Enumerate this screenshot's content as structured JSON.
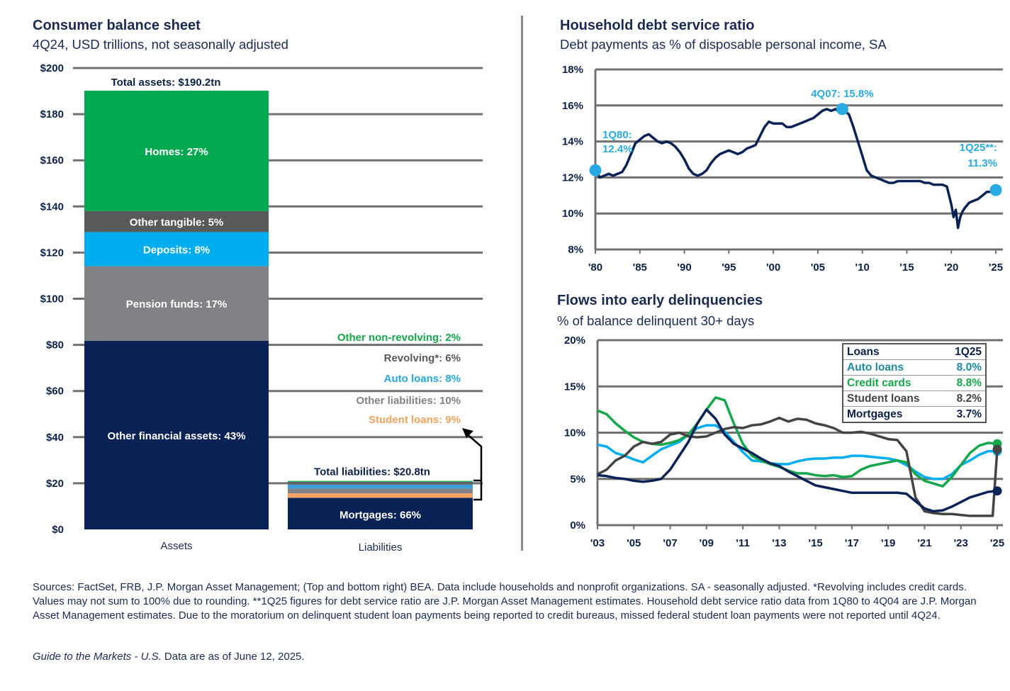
{
  "left_panel": {
    "title": "Consumer balance sheet",
    "subtitle": "4Q24, USD trillions, not seasonally adjusted"
  },
  "right_top": {
    "title": "Household debt service ratio",
    "subtitle": "Debt payments as % of disposable personal income, SA"
  },
  "right_bottom": {
    "title": "Flows into early delinquencies",
    "subtitle": "% of balance delinquent 30+ days",
    "table": {
      "header": [
        "Loans",
        "1Q25"
      ],
      "rows": [
        {
          "label": "Auto loans",
          "value": "8.0%",
          "color": "#1e8aa0"
        },
        {
          "label": "Credit cards",
          "value": "8.8%",
          "color": "#16a74a"
        },
        {
          "label": "Student loans",
          "value": "8.2%",
          "color": "#444444"
        },
        {
          "label": "Mortgages",
          "value": "3.7%",
          "color": "#0b2148"
        }
      ]
    }
  },
  "chart_data": [
    {
      "type": "bar",
      "stacked": true,
      "categories": [
        "Assets",
        "Liabilities"
      ],
      "ylim": [
        0,
        200
      ],
      "yticks": [
        "$0",
        "$20",
        "$40",
        "$60",
        "$80",
        "$100",
        "$120",
        "$140",
        "$160",
        "$180",
        "$200"
      ],
      "totals": [
        {
          "category": "Assets",
          "value": 190.2,
          "label": "Total assets:",
          "value_label": "$190.2tn"
        },
        {
          "category": "Liabilities",
          "value": 20.8,
          "label": "Total liabilities: $20.8tn"
        }
      ],
      "assets": [
        {
          "name": "Other financial assets",
          "label": "Other financial assets: 43%",
          "value": 81.8,
          "color": "#0b2256"
        },
        {
          "name": "Pension funds",
          "label": "Pension funds: 17%",
          "value": 32.3,
          "color": "#808285"
        },
        {
          "name": "Deposits",
          "label": "Deposits: 8%",
          "value": 14.8,
          "color": "#00aeef"
        },
        {
          "name": "Other tangible",
          "label": "Other tangible: 5%",
          "value": 9.1,
          "color": "#58595b"
        },
        {
          "name": "Homes",
          "label": "Homes: 27%",
          "value": 52.2,
          "color": "#00a84f"
        }
      ],
      "liabilities": [
        {
          "name": "Mortgages",
          "label": "Mortgages: 66%",
          "value": 13.7,
          "color": "#0b2256"
        },
        {
          "name": "Student loans",
          "label": "Student loans: 9%",
          "value": 1.9,
          "color": "#f4a361"
        },
        {
          "name": "Other liabilities",
          "label": "Other liabilities: 10%",
          "value": 2.1,
          "color": "#808285"
        },
        {
          "name": "Auto loans",
          "label": "Auto loans: 8%",
          "value": 1.7,
          "color": "#3ba0d8"
        },
        {
          "name": "Revolving",
          "label": "Revolving*: 6%",
          "value": 1.2,
          "color": "#626366"
        },
        {
          "name": "Other non-revolving",
          "label": "Other non-revolving: 2%",
          "value": 0.4,
          "color": "#1fa64a"
        }
      ]
    },
    {
      "type": "line",
      "ylim": [
        8,
        18
      ],
      "xlim": [
        1980,
        2025
      ],
      "yticks": [
        {
          "v": 8,
          "label": "8%"
        },
        {
          "v": 10,
          "label": "10%"
        },
        {
          "v": 12,
          "label": "12%"
        },
        {
          "v": 14,
          "label": "14%"
        },
        {
          "v": 16,
          "label": "16%"
        },
        {
          "v": 18,
          "label": "18%"
        }
      ],
      "xticks": [
        {
          "v": 1980,
          "label": "'80"
        },
        {
          "v": 1985,
          "label": "'85"
        },
        {
          "v": 1990,
          "label": "'90"
        },
        {
          "v": 1995,
          "label": "'95"
        },
        {
          "v": 2000,
          "label": "'00"
        },
        {
          "v": 2005,
          "label": "'05"
        },
        {
          "v": 2010,
          "label": "'10"
        },
        {
          "v": 2015,
          "label": "'15"
        },
        {
          "v": 2020,
          "label": "'20"
        },
        {
          "v": 2025,
          "label": "'25"
        }
      ],
      "series": [
        {
          "color": "#0b2256",
          "x": [
            1980.0,
            1980.5,
            1981.0,
            1981.5,
            1982.0,
            1982.5,
            1983.0,
            1983.5,
            1984.0,
            1984.5,
            1985.0,
            1985.5,
            1986.0,
            1986.5,
            1987.0,
            1987.5,
            1988.0,
            1988.5,
            1989.0,
            1989.5,
            1990.0,
            1990.5,
            1991.0,
            1991.5,
            1992.0,
            1992.5,
            1993.0,
            1993.5,
            1994.0,
            1994.5,
            1995.0,
            1995.5,
            1996.0,
            1996.5,
            1997.0,
            1997.5,
            1998.0,
            1998.5,
            1999.0,
            1999.5,
            2000.0,
            2000.5,
            2001.0,
            2001.5,
            2002.0,
            2002.5,
            2003.0,
            2003.5,
            2004.0,
            2004.5,
            2005.0,
            2005.5,
            2006.0,
            2006.5,
            2007.0,
            2007.5,
            2007.75,
            2008.5,
            2009.0,
            2009.5,
            2010.0,
            2010.5,
            2011.0,
            2011.5,
            2012.0,
            2012.5,
            2013.0,
            2013.5,
            2014.0,
            2014.5,
            2015.0,
            2015.5,
            2016.0,
            2016.5,
            2017.0,
            2017.5,
            2018.0,
            2018.5,
            2019.0,
            2019.5,
            2020.0,
            2020.25,
            2020.5,
            2020.75,
            2021.0,
            2021.25,
            2021.5,
            2022.0,
            2022.5,
            2023.0,
            2023.5,
            2024.0,
            2024.5,
            2025.0
          ],
          "y": [
            12.4,
            12.0,
            12.1,
            12.2,
            12.1,
            12.2,
            12.3,
            12.7,
            13.3,
            13.9,
            14.1,
            14.3,
            14.4,
            14.2,
            14.0,
            13.9,
            14.0,
            13.9,
            13.7,
            13.4,
            13.0,
            12.5,
            12.2,
            12.1,
            12.2,
            12.4,
            12.8,
            13.1,
            13.3,
            13.4,
            13.5,
            13.4,
            13.3,
            13.4,
            13.6,
            13.7,
            13.8,
            14.3,
            14.8,
            15.1,
            15.0,
            15.0,
            15.0,
            14.8,
            14.8,
            14.9,
            15.0,
            15.1,
            15.2,
            15.3,
            15.5,
            15.7,
            15.8,
            15.7,
            15.8,
            15.6,
            15.8,
            15.5,
            14.8,
            14.0,
            13.2,
            12.4,
            12.1,
            12.0,
            11.9,
            11.8,
            11.7,
            11.7,
            11.8,
            11.8,
            11.8,
            11.8,
            11.8,
            11.8,
            11.7,
            11.7,
            11.6,
            11.6,
            11.6,
            11.5,
            10.5,
            9.8,
            10.2,
            9.2,
            9.8,
            10.1,
            10.3,
            10.6,
            10.7,
            10.8,
            11.0,
            11.2,
            11.2,
            11.3
          ]
        }
      ],
      "annotations": [
        {
          "x": 1980.0,
          "y": 12.4,
          "lines": [
            "1Q80:",
            "12.4%"
          ]
        },
        {
          "x": 2007.75,
          "y": 15.8,
          "lines": [
            "4Q07: 15.8%"
          ]
        },
        {
          "x": 2025.0,
          "y": 11.3,
          "lines": [
            "1Q25**:",
            "11.3%"
          ]
        }
      ]
    },
    {
      "type": "line",
      "ylim": [
        0,
        20
      ],
      "xlim": [
        2003,
        2025
      ],
      "yticks": [
        {
          "v": 0,
          "label": "0%"
        },
        {
          "v": 5,
          "label": "5%"
        },
        {
          "v": 10,
          "label": "10%"
        },
        {
          "v": 15,
          "label": "15%"
        },
        {
          "v": 20,
          "label": "20%"
        }
      ],
      "xticks": [
        {
          "v": 2003,
          "label": "'03"
        },
        {
          "v": 2005,
          "label": "'05"
        },
        {
          "v": 2007,
          "label": "'07"
        },
        {
          "v": 2009,
          "label": "'09"
        },
        {
          "v": 2011,
          "label": "'11"
        },
        {
          "v": 2013,
          "label": "'13"
        },
        {
          "v": 2015,
          "label": "'15"
        },
        {
          "v": 2017,
          "label": "'17"
        },
        {
          "v": 2019,
          "label": "'19"
        },
        {
          "v": 2021,
          "label": "'21"
        },
        {
          "v": 2023,
          "label": "'23"
        },
        {
          "v": 2025,
          "label": "'25"
        }
      ],
      "series": [
        {
          "color": "#00aeef",
          "x": [
            2003.0,
            2003.5,
            2004.0,
            2004.5,
            2005.0,
            2005.5,
            2006.0,
            2006.5,
            2007.0,
            2007.5,
            2008.0,
            2008.5,
            2009.0,
            2009.5,
            2010.0,
            2010.5,
            2011.0,
            2011.5,
            2012.0,
            2012.5,
            2013.0,
            2013.5,
            2014.0,
            2014.5,
            2015.0,
            2015.5,
            2016.0,
            2016.5,
            2017.0,
            2017.5,
            2018.0,
            2018.5,
            2019.0,
            2019.5,
            2020.0,
            2020.5,
            2021.0,
            2021.5,
            2022.0,
            2022.5,
            2023.0,
            2023.5,
            2024.0,
            2024.5,
            2025.0
          ],
          "y": [
            8.7,
            8.5,
            7.8,
            7.5,
            7.1,
            6.8,
            7.5,
            8.2,
            8.6,
            9.0,
            9.8,
            10.5,
            10.8,
            10.8,
            10.1,
            9.0,
            7.9,
            7.0,
            6.9,
            6.7,
            6.6,
            6.6,
            6.9,
            7.1,
            7.2,
            7.2,
            7.3,
            7.3,
            7.5,
            7.5,
            7.4,
            7.3,
            7.2,
            7.0,
            6.5,
            5.8,
            5.2,
            5.0,
            5.0,
            5.5,
            6.5,
            7.0,
            7.6,
            8.0,
            8.0
          ]
        },
        {
          "color": "#16a74a",
          "x": [
            2003.0,
            2003.5,
            2004.0,
            2004.5,
            2005.0,
            2005.5,
            2006.0,
            2006.5,
            2007.0,
            2007.5,
            2008.0,
            2008.5,
            2009.0,
            2009.5,
            2010.0,
            2010.5,
            2011.0,
            2011.5,
            2012.0,
            2012.5,
            2013.0,
            2013.5,
            2014.0,
            2014.5,
            2015.0,
            2015.5,
            2016.0,
            2016.5,
            2017.0,
            2017.5,
            2018.0,
            2018.5,
            2019.0,
            2019.5,
            2020.0,
            2020.5,
            2021.0,
            2021.5,
            2022.0,
            2022.5,
            2023.0,
            2023.5,
            2024.0,
            2024.5,
            2025.0
          ],
          "y": [
            12.4,
            12.0,
            11.0,
            10.2,
            9.5,
            9.0,
            8.8,
            8.7,
            8.9,
            9.2,
            9.8,
            11.0,
            12.5,
            13.8,
            13.5,
            11.0,
            8.8,
            7.5,
            7.0,
            6.6,
            6.3,
            5.9,
            5.6,
            5.6,
            5.4,
            5.3,
            5.4,
            5.2,
            5.3,
            6.0,
            6.4,
            6.6,
            6.8,
            7.0,
            6.8,
            5.5,
            4.8,
            4.5,
            4.2,
            5.2,
            6.5,
            7.8,
            8.6,
            8.9,
            8.8
          ]
        },
        {
          "color": "#444444",
          "x": [
            2003.0,
            2003.5,
            2004.0,
            2004.5,
            2005.0,
            2005.5,
            2006.0,
            2006.5,
            2007.0,
            2007.5,
            2008.0,
            2008.5,
            2009.0,
            2009.5,
            2010.0,
            2010.5,
            2011.0,
            2011.5,
            2012.0,
            2012.5,
            2013.0,
            2013.5,
            2014.0,
            2014.5,
            2015.0,
            2015.5,
            2016.0,
            2016.5,
            2017.0,
            2017.5,
            2018.0,
            2018.5,
            2019.0,
            2019.5,
            2020.0,
            2020.5,
            2021.0,
            2021.5,
            2022.0,
            2022.5,
            2023.0,
            2023.5,
            2024.0,
            2024.5,
            2024.75,
            2025.0
          ],
          "y": [
            5.5,
            6.0,
            7.0,
            7.5,
            8.5,
            9.0,
            8.8,
            9.0,
            9.8,
            10.0,
            9.6,
            9.5,
            9.6,
            10.0,
            10.4,
            10.6,
            10.5,
            10.8,
            10.9,
            11.2,
            11.6,
            11.2,
            11.5,
            11.4,
            11.0,
            10.8,
            10.5,
            10.0,
            10.0,
            10.1,
            9.9,
            9.6,
            9.3,
            9.2,
            8.0,
            3.0,
            1.5,
            1.3,
            1.2,
            1.2,
            1.1,
            1.0,
            1.0,
            1.0,
            1.0,
            8.2
          ]
        },
        {
          "color": "#0b2256",
          "x": [
            2003.0,
            2003.5,
            2004.0,
            2004.5,
            2005.0,
            2005.5,
            2006.0,
            2006.5,
            2007.0,
            2007.5,
            2008.0,
            2008.5,
            2009.0,
            2009.5,
            2010.0,
            2010.5,
            2011.0,
            2011.5,
            2012.0,
            2012.5,
            2013.0,
            2013.5,
            2014.0,
            2014.5,
            2015.0,
            2015.5,
            2016.0,
            2016.5,
            2017.0,
            2017.5,
            2018.0,
            2018.5,
            2019.0,
            2019.5,
            2020.0,
            2020.5,
            2021.0,
            2021.5,
            2022.0,
            2022.5,
            2023.0,
            2023.5,
            2024.0,
            2024.5,
            2025.0
          ],
          "y": [
            5.4,
            5.3,
            5.1,
            5.0,
            4.8,
            4.7,
            4.8,
            5.0,
            6.0,
            7.5,
            9.0,
            11.0,
            12.5,
            11.5,
            9.8,
            8.8,
            8.3,
            7.8,
            7.2,
            6.7,
            6.4,
            5.8,
            5.3,
            4.8,
            4.3,
            4.1,
            3.9,
            3.7,
            3.5,
            3.5,
            3.5,
            3.5,
            3.5,
            3.5,
            3.4,
            2.6,
            1.8,
            1.5,
            1.6,
            2.0,
            2.5,
            3.0,
            3.3,
            3.6,
            3.7
          ]
        }
      ]
    }
  ]
}
